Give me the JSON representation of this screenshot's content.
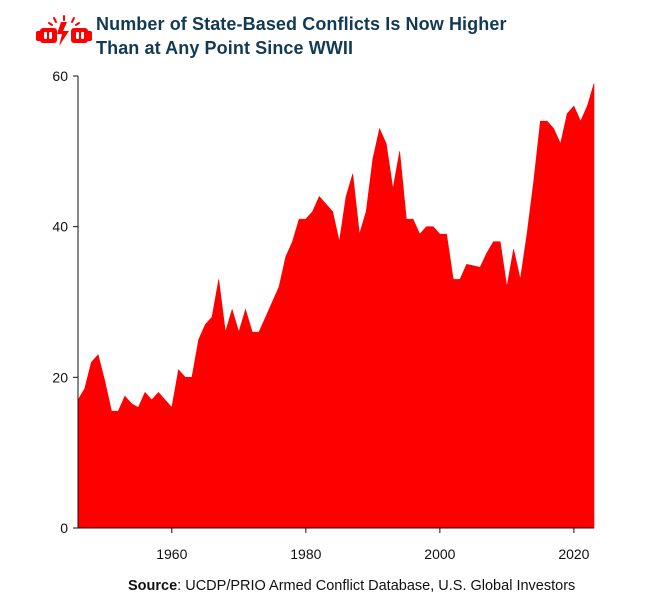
{
  "title_lines": [
    "Number of State-Based Conflicts Is Now Higher",
    "Than at Any Point Since WWII"
  ],
  "source": {
    "label": "Source",
    "separator": ": ",
    "text": "UCDP/PRIO Armed Conflict Database, U.S. Global Investors"
  },
  "logo_icon": "clashing-fists-icon",
  "colors": {
    "area": "#ff0000",
    "title": "#123a55",
    "axis": "#111111"
  },
  "chart_data": {
    "type": "area",
    "title": "Number of State-Based Conflicts Is Now Higher Than at Any Point Since WWII",
    "xlabel": "",
    "ylabel": "",
    "xlim": [
      1946,
      2023
    ],
    "ylim": [
      0,
      60
    ],
    "x_ticks": [
      1960,
      1980,
      2000,
      2020
    ],
    "y_ticks": [
      0,
      20,
      40,
      60
    ],
    "grid": false,
    "legend": "none",
    "series": [
      {
        "name": "",
        "x": [
          1946,
          1947,
          1948,
          1949,
          1950,
          1951,
          1952,
          1953,
          1954,
          1955,
          1956,
          1957,
          1958,
          1959,
          1960,
          1961,
          1962,
          1963,
          1964,
          1965,
          1966,
          1967,
          1968,
          1969,
          1970,
          1971,
          1972,
          1973,
          1974,
          1975,
          1976,
          1977,
          1978,
          1979,
          1980,
          1981,
          1982,
          1983,
          1984,
          1985,
          1986,
          1987,
          1988,
          1989,
          1990,
          1991,
          1992,
          1993,
          1994,
          1995,
          1996,
          1997,
          1998,
          1999,
          2000,
          2001,
          2002,
          2003,
          2004,
          2005,
          2006,
          2007,
          2008,
          2009,
          2010,
          2011,
          2012,
          2013,
          2014,
          2015,
          2016,
          2017,
          2018,
          2019,
          2020,
          2021,
          2022,
          2023
        ],
        "values": [
          17,
          18.5,
          22,
          23,
          19.5,
          15.5,
          15.5,
          17.5,
          16.5,
          16,
          18,
          17,
          18,
          17,
          16,
          21,
          20,
          20,
          25,
          27,
          28,
          33,
          26,
          29,
          26,
          29,
          26,
          26,
          28,
          30,
          32,
          36,
          38,
          41,
          41,
          42,
          44,
          43,
          42,
          38,
          44,
          47,
          39,
          42,
          49,
          53,
          51,
          45,
          50,
          41,
          41,
          39,
          40,
          40,
          39,
          39,
          33,
          33,
          35,
          34.8,
          34.6,
          36.5,
          38,
          38,
          32,
          37,
          33,
          39,
          46,
          54,
          54,
          53,
          51,
          55,
          56,
          54,
          56,
          59
        ]
      }
    ]
  }
}
